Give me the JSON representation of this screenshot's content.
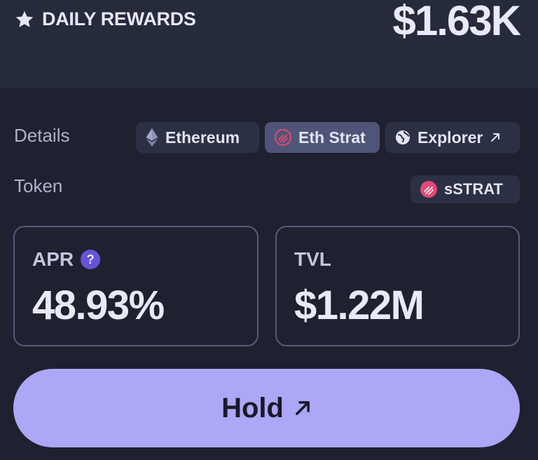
{
  "rewards": {
    "label": "DAILY REWARDS",
    "value": "$1.63K",
    "icon": "star-icon"
  },
  "details": {
    "label": "Details",
    "chips": [
      {
        "label": "Ethereum",
        "icon": "ethereum-icon"
      },
      {
        "label": "Eth Strat",
        "icon": "strat-logo-icon",
        "active": true
      },
      {
        "label": "Explorer",
        "icon": "globe-icon",
        "trailing_icon": "external-arrow-icon"
      }
    ]
  },
  "token": {
    "label": "Token",
    "chip": {
      "label": "sSTRAT",
      "icon": "strat-logo-icon"
    }
  },
  "stats": {
    "apr": {
      "label": "APR",
      "value": "48.93%",
      "help_icon": "question-icon",
      "help_text": "?"
    },
    "tvl": {
      "label": "TVL",
      "value": "$1.22M"
    }
  },
  "action": {
    "label": "Hold",
    "icon": "external-arrow-icon"
  },
  "colors": {
    "background": "#1f2130",
    "band": "#262a3d",
    "chip": "#2c3044",
    "chip_active": "#4f5578",
    "card_border": "#555b7e",
    "accent_button": "#ada7f8",
    "help_badge": "#6753d8",
    "strat_logo": "#e24874"
  }
}
